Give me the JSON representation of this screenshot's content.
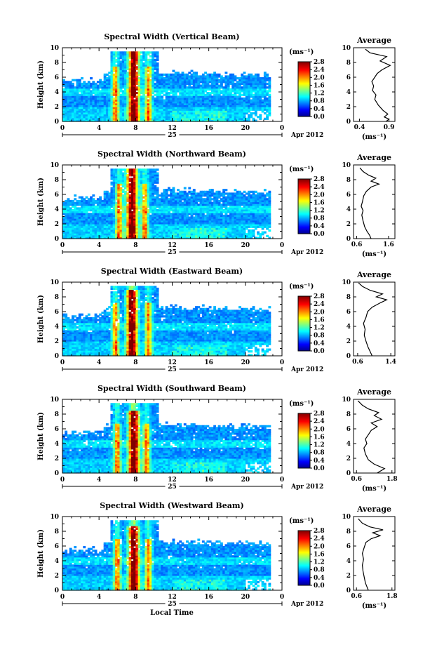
{
  "chart_data": [
    {
      "type": "heatmap",
      "title": "Spectral Width (Vertical Beam)",
      "ylabel": "Height (km)",
      "xticks": [
        "0",
        "4",
        "8",
        "12",
        "16",
        "20",
        "0"
      ],
      "yticks": [
        "0",
        "2",
        "4",
        "6",
        "8",
        "10"
      ],
      "xlim": [
        0,
        24
      ],
      "ylim": [
        0,
        10
      ],
      "date_label": "25",
      "date_suffix": "Apr 2012",
      "colorbar": {
        "unit": "(ms⁻¹)",
        "ticks": [
          "2.8",
          "2.4",
          "2.0",
          "1.6",
          "1.2",
          "0.8",
          "0.4",
          "0.0"
        ],
        "range": [
          0,
          2.8
        ]
      },
      "average": {
        "title": "Average",
        "xlabel": "(ms⁻¹)",
        "xticks": [
          "0.4",
          "0.9"
        ],
        "xlim": [
          0.3,
          1.0
        ],
        "profile": [
          [
            0.85,
            0
          ],
          [
            0.9,
            0.3
          ],
          [
            0.82,
            0.6
          ],
          [
            0.88,
            1.0
          ],
          [
            0.8,
            1.5
          ],
          [
            0.72,
            2.2
          ],
          [
            0.66,
            3.0
          ],
          [
            0.68,
            3.6
          ],
          [
            0.62,
            4.2
          ],
          [
            0.64,
            4.8
          ],
          [
            0.61,
            5.4
          ],
          [
            0.66,
            6.0
          ],
          [
            0.7,
            6.5
          ],
          [
            0.78,
            7.0
          ],
          [
            0.92,
            7.6
          ],
          [
            0.75,
            8.2
          ],
          [
            0.86,
            8.8
          ],
          [
            0.58,
            9.3
          ],
          [
            0.5,
            9.8
          ]
        ]
      },
      "activity": {
        "peak_hours": [
          5.8,
          7.8,
          9.4
        ],
        "layer_top_km": 7.6
      }
    },
    {
      "type": "heatmap",
      "title": "Spectral Width (Northward Beam)",
      "ylabel": "Height (km)",
      "xticks": [
        "0",
        "4",
        "8",
        "12",
        "16",
        "20",
        "0"
      ],
      "yticks": [
        "0",
        "2",
        "4",
        "6",
        "8",
        "10"
      ],
      "xlim": [
        0,
        24
      ],
      "ylim": [
        0,
        10
      ],
      "date_label": "25",
      "date_suffix": "Apr 2012",
      "colorbar": {
        "unit": "(ms⁻¹)",
        "ticks": [
          "2.8",
          "2.4",
          "2.0",
          "1.6",
          "1.2",
          "0.8",
          "0.4",
          "0.0"
        ],
        "range": [
          0,
          2.8
        ]
      },
      "average": {
        "title": "Average",
        "xlabel": "(ms⁻¹)",
        "xticks": [
          "0.6",
          "1.6"
        ],
        "xlim": [
          0.5,
          1.8
        ],
        "profile": [
          [
            1.05,
            0
          ],
          [
            1.0,
            0.5
          ],
          [
            0.92,
            1.0
          ],
          [
            0.85,
            1.6
          ],
          [
            0.8,
            2.4
          ],
          [
            0.76,
            3.2
          ],
          [
            0.8,
            3.8
          ],
          [
            0.74,
            4.4
          ],
          [
            0.78,
            5.0
          ],
          [
            0.82,
            5.8
          ],
          [
            0.9,
            6.4
          ],
          [
            1.05,
            7.0
          ],
          [
            1.3,
            7.4
          ],
          [
            1.05,
            7.8
          ],
          [
            1.2,
            8.2
          ],
          [
            0.98,
            8.6
          ],
          [
            0.8,
            9.1
          ],
          [
            0.7,
            9.6
          ]
        ]
      },
      "activity": {
        "peak_hours": [
          6.2,
          7.6,
          9.0
        ],
        "layer_top_km": 7.6
      }
    },
    {
      "type": "heatmap",
      "title": "Spectral Width (Eastward Beam)",
      "ylabel": "Height (km)",
      "xticks": [
        "0",
        "4",
        "8",
        "12",
        "16",
        "20",
        "0"
      ],
      "yticks": [
        "0",
        "2",
        "4",
        "6",
        "8",
        "10"
      ],
      "xlim": [
        0,
        24
      ],
      "ylim": [
        0,
        10
      ],
      "date_label": "25",
      "date_suffix": "Apr 2012",
      "colorbar": {
        "unit": "(ms⁻¹)",
        "ticks": [
          "2.8",
          "2.4",
          "2.0",
          "1.6",
          "1.2",
          "0.8",
          "0.4",
          "0.0"
        ],
        "range": [
          0,
          2.8
        ]
      },
      "average": {
        "title": "Average",
        "xlabel": "",
        "xticks": [
          "0.6",
          "1.4"
        ],
        "xlim": [
          0.5,
          1.5
        ],
        "profile": [
          [
            0.95,
            0
          ],
          [
            0.9,
            0.6
          ],
          [
            0.85,
            1.2
          ],
          [
            0.8,
            2.0
          ],
          [
            0.76,
            2.8
          ],
          [
            0.78,
            3.6
          ],
          [
            0.74,
            4.4
          ],
          [
            0.8,
            5.2
          ],
          [
            0.84,
            6.0
          ],
          [
            0.95,
            6.6
          ],
          [
            1.15,
            7.2
          ],
          [
            1.3,
            7.6
          ],
          [
            1.05,
            8.0
          ],
          [
            1.2,
            8.4
          ],
          [
            0.9,
            8.9
          ],
          [
            0.72,
            9.4
          ],
          [
            0.62,
            9.9
          ]
        ]
      },
      "activity": {
        "peak_hours": [
          5.8,
          7.6,
          9.4
        ],
        "layer_top_km": 7.2
      }
    },
    {
      "type": "heatmap",
      "title": "Spectral Width (Southward Beam)",
      "ylabel": "Height (km)",
      "xticks": [
        "0",
        "4",
        "8",
        "12",
        "16",
        "20",
        "0"
      ],
      "yticks": [
        "0",
        "2",
        "4",
        "6",
        "8",
        "10"
      ],
      "xlim": [
        0,
        24
      ],
      "ylim": [
        0,
        10
      ],
      "date_label": "25",
      "date_suffix": "Apr 2012",
      "colorbar": {
        "unit": "(ms⁻¹)",
        "ticks": [
          "2.8",
          "2.4",
          "2.0",
          "1.6",
          "1.2",
          "0.8",
          "0.4",
          "0.0"
        ],
        "range": [
          0,
          2.8
        ]
      },
      "average": {
        "title": "Average",
        "xlabel": "(ms⁻¹)",
        "xticks": [
          "0.6",
          "1.8"
        ],
        "xlim": [
          0.5,
          1.9
        ],
        "profile": [
          [
            1.3,
            0
          ],
          [
            1.55,
            0.6
          ],
          [
            1.2,
            1.2
          ],
          [
            1.0,
            1.8
          ],
          [
            0.9,
            2.6
          ],
          [
            0.85,
            3.4
          ],
          [
            0.95,
            4.0
          ],
          [
            0.9,
            4.6
          ],
          [
            1.0,
            5.2
          ],
          [
            1.1,
            5.8
          ],
          [
            1.3,
            6.3
          ],
          [
            1.1,
            6.8
          ],
          [
            1.45,
            7.3
          ],
          [
            1.2,
            7.8
          ],
          [
            1.35,
            8.2
          ],
          [
            1.0,
            8.7
          ],
          [
            0.8,
            9.2
          ],
          [
            0.65,
            9.8
          ]
        ]
      },
      "activity": {
        "peak_hours": [
          6.0,
          7.8,
          9.2
        ],
        "layer_top_km": 6.8
      }
    },
    {
      "type": "heatmap",
      "title": "Spectral Width (Westward Beam)",
      "ylabel": "Height (km)",
      "xlabel": "Local Time",
      "xticks": [
        "0",
        "4",
        "8",
        "12",
        "16",
        "20",
        "0"
      ],
      "yticks": [
        "0",
        "2",
        "4",
        "6",
        "8",
        "10"
      ],
      "xlim": [
        0,
        24
      ],
      "ylim": [
        0,
        10
      ],
      "date_label": "25",
      "date_suffix": "Apr 2012",
      "colorbar": {
        "unit": "(ms⁻¹)",
        "ticks": [
          "2.8",
          "2.4",
          "2.0",
          "1.6",
          "1.2",
          "0.8",
          "0.4",
          "0.0"
        ],
        "range": [
          0,
          2.8
        ]
      },
      "average": {
        "title": "Average",
        "xlabel": "(ms⁻¹)",
        "xticks": [
          "0.6",
          "1.8"
        ],
        "xlim": [
          0.5,
          1.9
        ],
        "profile": [
          [
            1.0,
            0
          ],
          [
            0.95,
            0.5
          ],
          [
            0.9,
            1.0
          ],
          [
            0.86,
            1.8
          ],
          [
            0.82,
            2.6
          ],
          [
            0.8,
            3.4
          ],
          [
            0.84,
            4.2
          ],
          [
            0.8,
            5.0
          ],
          [
            0.86,
            5.8
          ],
          [
            0.92,
            6.5
          ],
          [
            1.1,
            7.0
          ],
          [
            1.4,
            7.4
          ],
          [
            1.15,
            7.8
          ],
          [
            1.5,
            8.2
          ],
          [
            1.05,
            8.6
          ],
          [
            0.8,
            9.1
          ],
          [
            0.66,
            9.7
          ]
        ]
      },
      "activity": {
        "peak_hours": [
          6.0,
          7.8,
          9.4
        ],
        "layer_top_km": 7.0
      }
    }
  ]
}
